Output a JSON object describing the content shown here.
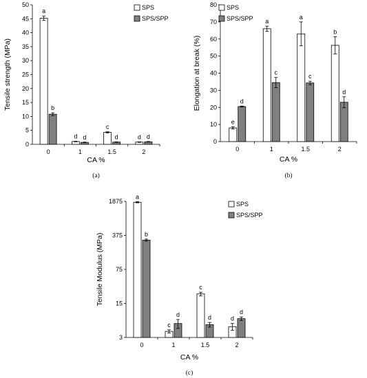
{
  "chart_data": [
    {
      "type": "bar",
      "panel_label": "(a)",
      "categories": [
        "0",
        "1",
        "1.5",
        "2"
      ],
      "xlabel": "CA %",
      "ylabel": "Tensile strength (MPa)",
      "ylim": [
        0,
        50
      ],
      "yticks": [
        "0",
        "5",
        "10",
        "15",
        "20",
        "25",
        "30",
        "35",
        "40",
        "45",
        "50"
      ],
      "scale": "linear",
      "legend_position": "top-right",
      "series": [
        {
          "name": "SPS",
          "color": "#ffffff",
          "values": [
            45.2,
            1.0,
            4.3,
            0.8
          ],
          "errors": [
            0.8,
            0.1,
            0.2,
            0.1
          ],
          "letters": [
            "a",
            "d",
            "c",
            "d"
          ]
        },
        {
          "name": "SPS/SPP",
          "color": "#808080",
          "values": [
            10.8,
            0.7,
            0.8,
            0.9
          ],
          "errors": [
            0.5,
            0.1,
            0.1,
            0.1
          ],
          "letters": [
            "b",
            "d",
            "d",
            "d"
          ]
        }
      ]
    },
    {
      "type": "bar",
      "panel_label": "(b)",
      "categories": [
        "0",
        "1",
        "1.5",
        "2"
      ],
      "xlabel": "CA %",
      "ylabel": "Elongation at break (%)",
      "ylim": [
        0,
        80
      ],
      "yticks": [
        "0",
        "10",
        "20",
        "30",
        "40",
        "50",
        "60",
        "70",
        "80"
      ],
      "scale": "linear",
      "legend_position": "top-left",
      "series": [
        {
          "name": "SPS",
          "color": "#ffffff",
          "values": [
            8.0,
            66.0,
            63.0,
            56.3
          ],
          "errors": [
            0.7,
            1.5,
            7.0,
            5.0
          ],
          "letters": [
            "e",
            "a",
            "a",
            "b"
          ]
        },
        {
          "name": "SPS/SPP",
          "color": "#808080",
          "values": [
            20.5,
            34.5,
            34.3,
            23.0
          ],
          "errors": [
            0.3,
            3.0,
            1.0,
            3.2
          ],
          "letters": [
            "d",
            "c",
            "c",
            "d"
          ]
        }
      ]
    },
    {
      "type": "bar",
      "panel_label": "(c)",
      "categories": [
        "0",
        "1",
        "1.5",
        "2"
      ],
      "xlabel": "CA %",
      "ylabel": "Tensile Modulus (MPa)",
      "ylim": [
        3,
        1875
      ],
      "yticks": [
        "3",
        "15",
        "75",
        "375",
        "1875"
      ],
      "scale": "log",
      "legend_position": "top-right",
      "series": [
        {
          "name": "SPS",
          "color": "#ffffff",
          "values": [
            1800,
            4.0,
            23.5,
            5.0
          ],
          "errors": [
            50,
            0.3,
            2.0,
            0.8
          ],
          "letters": [
            "a",
            "c",
            "c",
            "d"
          ]
        },
        {
          "name": "SPS/SPP",
          "color": "#808080",
          "values": [
            300,
            5.8,
            5.5,
            7.3
          ],
          "errors": [
            15,
            1.2,
            0.6,
            0.6
          ],
          "letters": [
            "b",
            "d",
            "d",
            "d"
          ]
        }
      ]
    }
  ]
}
